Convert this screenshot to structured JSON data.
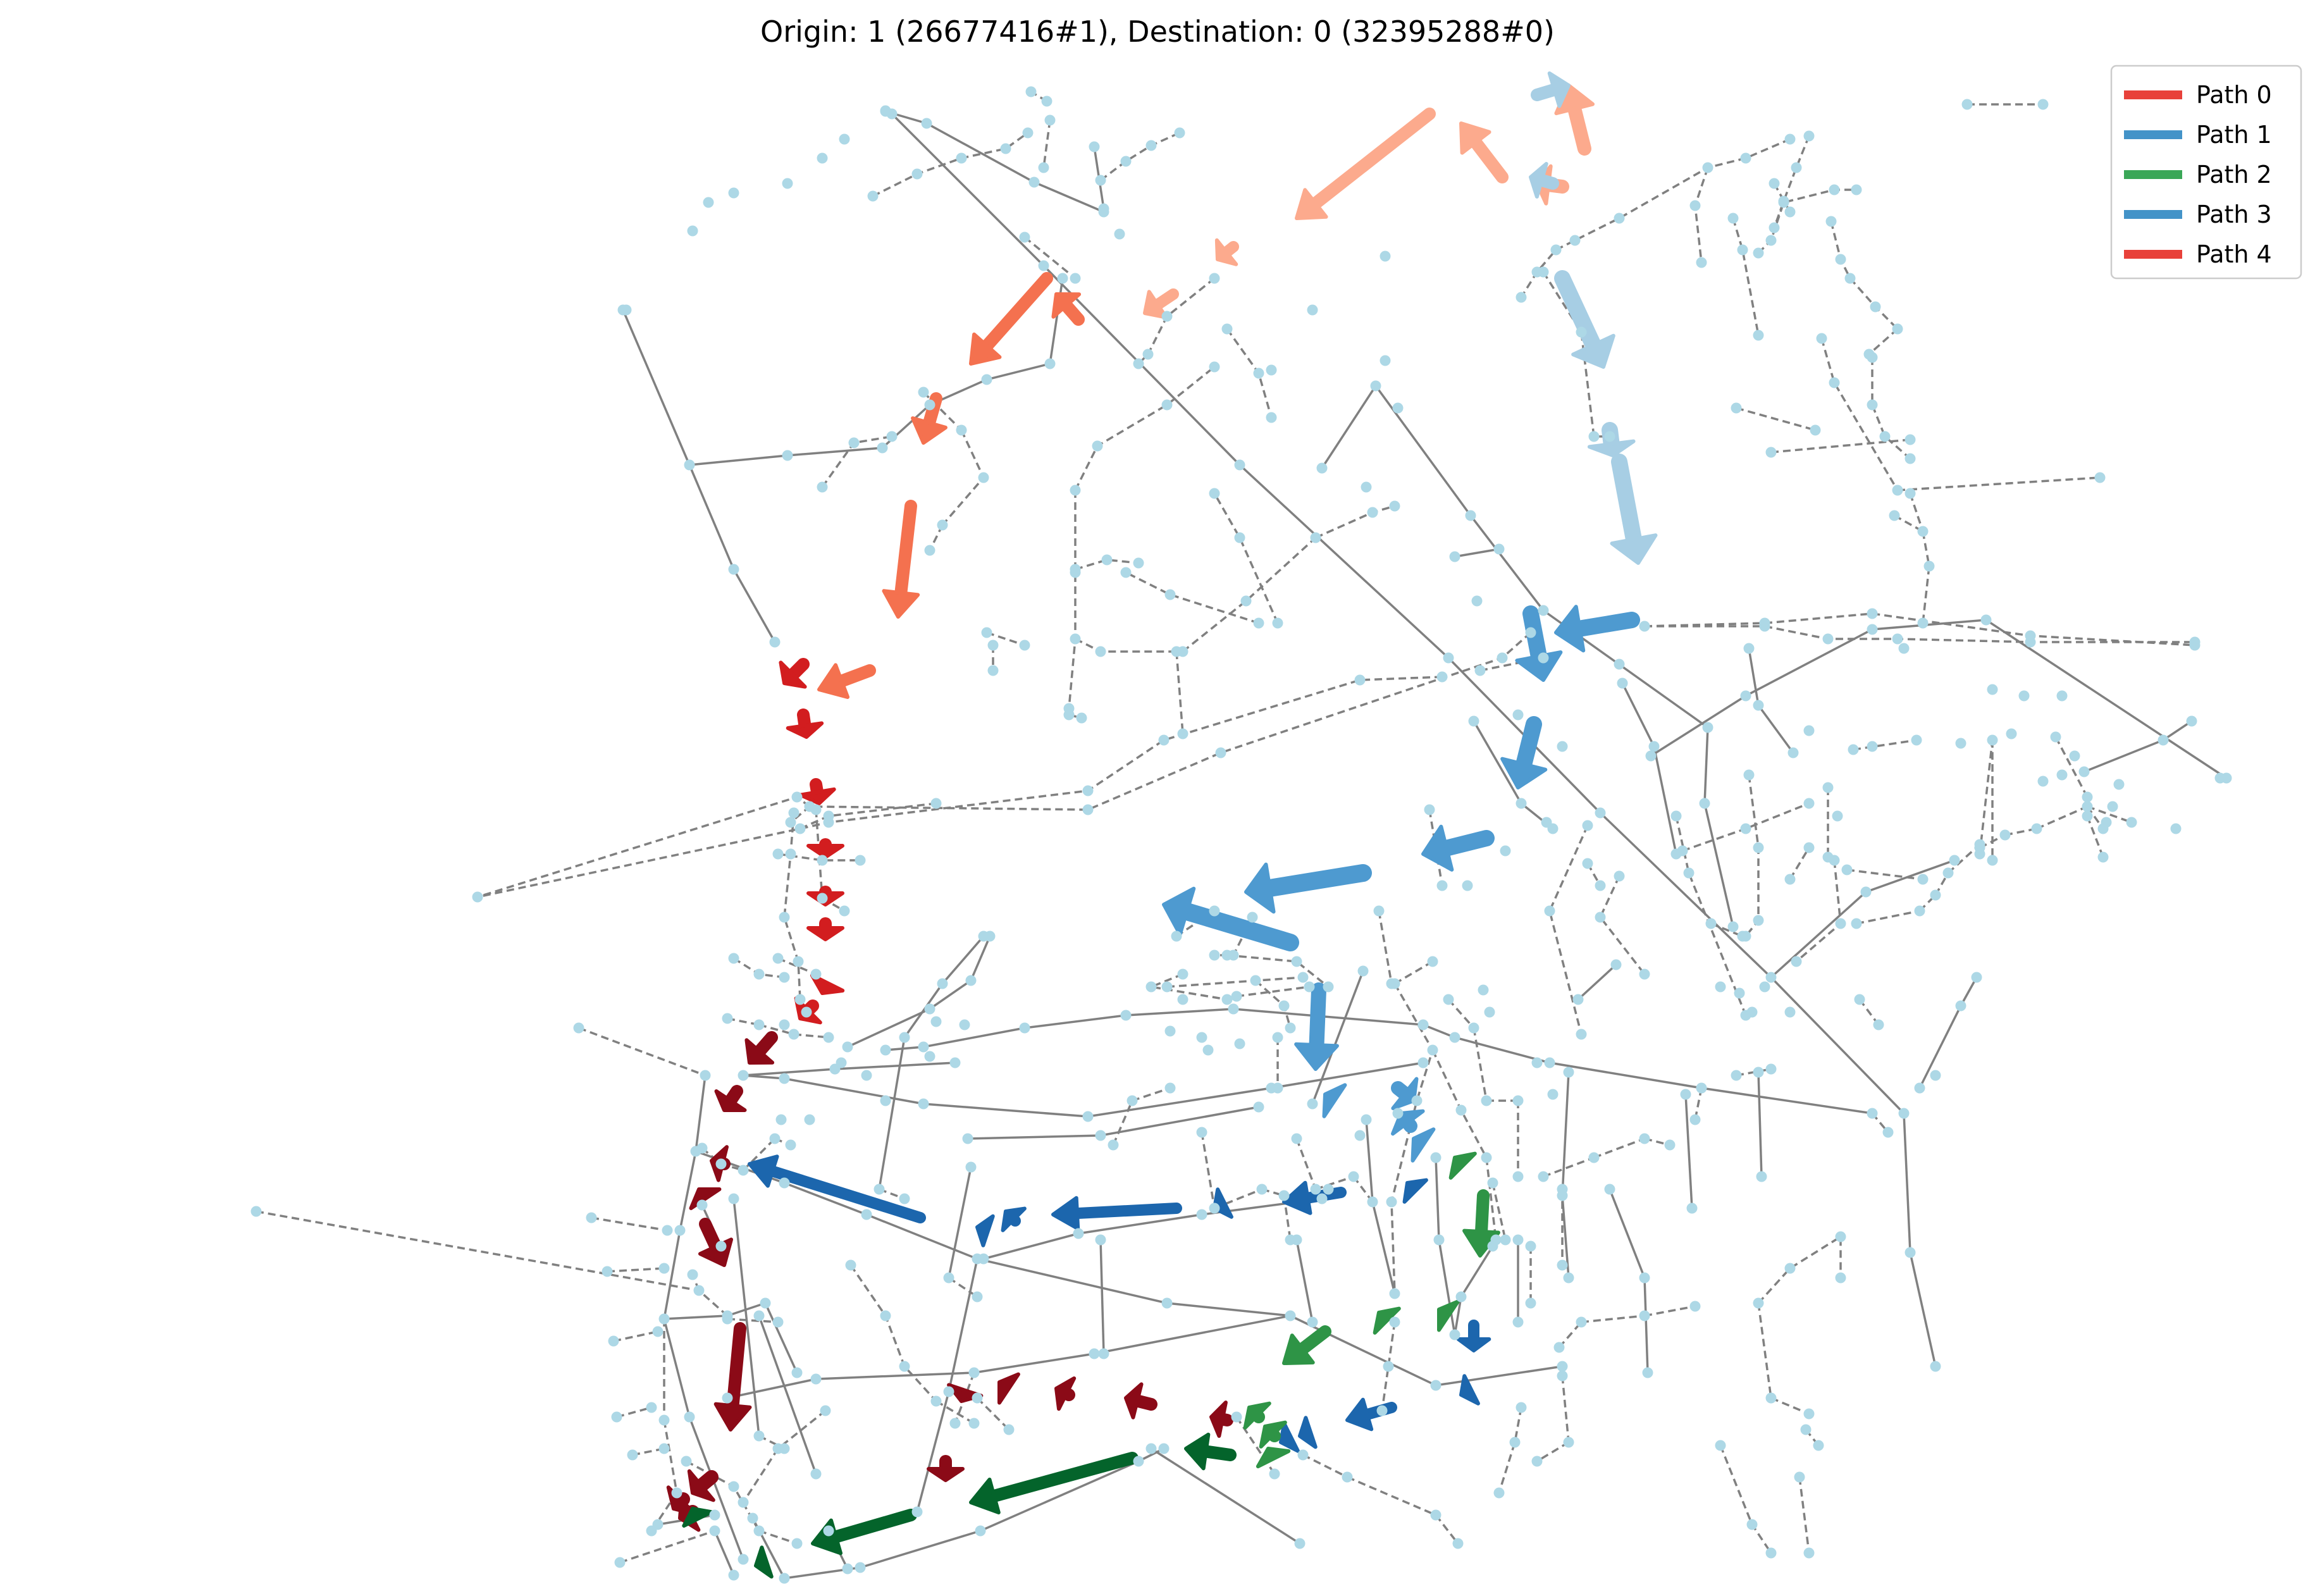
{
  "title": "Origin: 1 (26677416#1), Destination: 0 (32395288#0)",
  "legend": {
    "placement": "top-right",
    "items": [
      {
        "label": "Path 0",
        "color": "#e8413a"
      },
      {
        "label": "Path 1",
        "color": "#4393c8"
      },
      {
        "label": "Path 2",
        "color": "#3aa757"
      },
      {
        "label": "Path 3",
        "color": "#4393c8"
      },
      {
        "label": "Path 4",
        "color": "#e8413a"
      }
    ]
  },
  "colors": {
    "edge": "#808080",
    "node": "#add8e6",
    "path_light_salmon": "#fcaa8d",
    "path_salmon": "#f4714f",
    "path_red": "#d21d1f",
    "path_dark_red": "#8b0a17",
    "path_light_blue": "#a7cee4",
    "path_mid_blue": "#4e9ad0",
    "path_dark_blue": "#1c66ad",
    "path_green": "#2e9446",
    "path_dark_green": "#04642b"
  }
}
